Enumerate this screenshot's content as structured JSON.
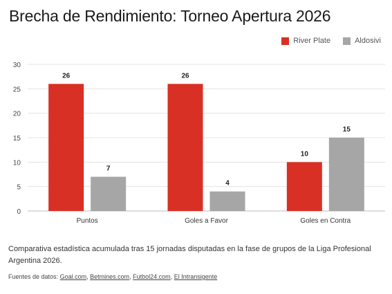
{
  "chart_data": {
    "type": "bar",
    "title": "Brecha de Rendimiento: Torneo Apertura 2026",
    "categories": [
      "Puntos",
      "Goles a Favor",
      "Goles en Contra"
    ],
    "series": [
      {
        "name": "River Plate",
        "values": [
          26,
          26,
          10
        ],
        "color": "#d93025"
      },
      {
        "name": "Aldosivi",
        "values": [
          7,
          4,
          15
        ],
        "color": "#a6a6a6"
      }
    ],
    "ylim": [
      0,
      30
    ],
    "yticks": [
      0,
      5,
      10,
      15,
      20,
      25,
      30
    ],
    "xlabel": "",
    "ylabel": "",
    "grid": true,
    "legend": "top-right"
  },
  "caption": "Comparativa estadística acumulada tras 15 jornadas disputadas en la fase de grupos de la Liga Profesional Argentina 2026.",
  "sources": {
    "label": "Fuentes de datos:",
    "links": [
      "Goal.com",
      "Betmines.com",
      "Futbol24.com",
      "El Intransigente"
    ]
  }
}
